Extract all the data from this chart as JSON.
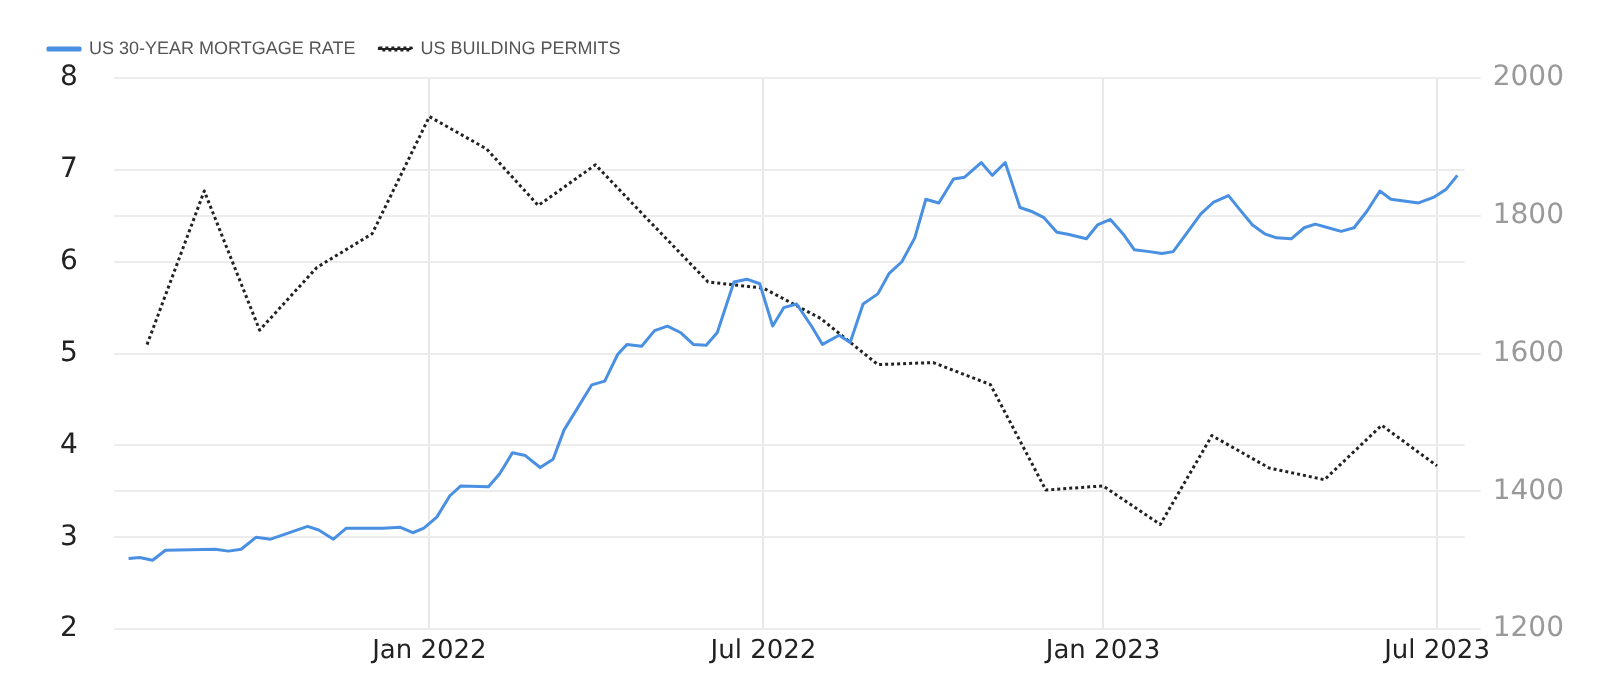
{
  "chart_data": {
    "type": "line",
    "legend": "top left",
    "grid": true,
    "marker": "none",
    "xlim": [
      "2021-07-14",
      "2023-07-16"
    ],
    "xticks": [
      {
        "value": "2022-01-01",
        "label": "Jan 2022"
      },
      {
        "value": "2022-07-01",
        "label": "Jul 2022"
      },
      {
        "value": "2023-01-01",
        "label": "Jan 2023"
      },
      {
        "value": "2023-07-01",
        "label": "Jul 2023"
      }
    ],
    "ylim": [
      2,
      8
    ],
    "yticks": [
      2,
      3,
      4,
      5,
      6,
      7,
      8
    ],
    "y2lim": [
      1200,
      2000
    ],
    "y2ticks": [
      1200,
      1400,
      1600,
      1800,
      2000
    ],
    "series": [
      {
        "name": "US 30-YEAR MORTGAGE RATE",
        "color": "#4a90e2",
        "line_style": "solid",
        "axis": "y",
        "x": [
          "2021-07-22",
          "2021-07-28",
          "2021-08-04",
          "2021-08-11",
          "2021-09-07",
          "2021-09-14",
          "2021-09-21",
          "2021-09-29",
          "2021-10-07",
          "2021-10-27",
          "2021-11-02",
          "2021-11-10",
          "2021-11-17",
          "2021-12-07",
          "2021-12-16",
          "2021-12-23",
          "2021-12-29",
          "2022-01-05",
          "2022-01-12",
          "2022-01-18",
          "2022-02-02",
          "2022-02-08",
          "2022-02-15",
          "2022-02-22",
          "2022-03-02",
          "2022-03-09",
          "2022-03-15",
          "2022-03-30",
          "2022-04-06",
          "2022-04-13",
          "2022-04-18",
          "2022-04-26",
          "2022-05-03",
          "2022-05-10",
          "2022-05-17",
          "2022-05-24",
          "2022-05-31",
          "2022-06-06",
          "2022-06-15",
          "2022-06-22",
          "2022-06-29",
          "2022-07-06",
          "2022-07-12",
          "2022-07-19",
          "2022-07-27",
          "2022-08-02",
          "2022-08-11",
          "2022-08-17",
          "2022-08-24",
          "2022-09-01",
          "2022-09-07",
          "2022-09-14",
          "2022-09-21",
          "2022-09-27",
          "2022-10-04",
          "2022-10-12",
          "2022-10-18",
          "2022-10-27",
          "2022-11-02",
          "2022-11-09",
          "2022-11-17",
          "2022-11-23",
          "2022-11-30",
          "2022-12-07",
          "2022-12-13",
          "2022-12-23",
          "2022-12-29",
          "2023-01-05",
          "2023-01-12",
          "2023-01-18",
          "2023-01-26",
          "2023-02-02",
          "2023-02-08",
          "2023-02-15",
          "2023-02-23",
          "2023-03-02",
          "2023-03-10",
          "2023-03-16",
          "2023-03-23",
          "2023-03-30",
          "2023-04-05",
          "2023-04-13",
          "2023-04-20",
          "2023-04-26",
          "2023-05-03",
          "2023-05-10",
          "2023-05-17",
          "2023-05-24",
          "2023-05-31",
          "2023-06-06",
          "2023-06-13",
          "2023-06-21",
          "2023-06-29",
          "2023-07-06",
          "2023-07-12"
        ],
        "values": [
          2.77,
          2.78,
          2.75,
          2.86,
          2.87,
          2.85,
          2.87,
          3.0,
          2.98,
          3.12,
          3.08,
          2.98,
          3.1,
          3.1,
          3.11,
          3.05,
          3.1,
          3.22,
          3.45,
          3.56,
          3.55,
          3.69,
          3.92,
          3.89,
          3.76,
          3.85,
          4.17,
          4.66,
          4.7,
          4.99,
          5.1,
          5.08,
          5.25,
          5.3,
          5.23,
          5.1,
          5.09,
          5.23,
          5.78,
          5.81,
          5.76,
          5.3,
          5.5,
          5.54,
          5.3,
          5.1,
          5.2,
          5.12,
          5.54,
          5.65,
          5.87,
          6.0,
          6.26,
          6.68,
          6.64,
          6.9,
          6.92,
          7.08,
          6.94,
          7.08,
          6.59,
          6.55,
          6.48,
          6.32,
          6.3,
          6.25,
          6.4,
          6.46,
          6.3,
          6.13,
          6.11,
          6.09,
          6.11,
          6.3,
          6.52,
          6.65,
          6.72,
          6.57,
          6.4,
          6.3,
          6.26,
          6.25,
          6.37,
          6.41,
          6.37,
          6.33,
          6.37,
          6.55,
          6.77,
          6.68,
          6.66,
          6.64,
          6.7,
          6.79,
          6.94
        ]
      },
      {
        "name": "US BUILDING PERMITS",
        "color": "#222222",
        "line_style": "dotted",
        "axis": "y2",
        "x": [
          "2021-08-01",
          "2021-09-01",
          "2021-10-01",
          "2021-11-01",
          "2021-12-01",
          "2022-01-01",
          "2022-02-01",
          "2022-03-01",
          "2022-04-01",
          "2022-05-01",
          "2022-06-01",
          "2022-07-01",
          "2022-08-01",
          "2022-09-01",
          "2022-10-01",
          "2022-11-01",
          "2022-12-01",
          "2023-01-01",
          "2023-02-01",
          "2023-03-01",
          "2023-04-01",
          "2023-05-01",
          "2023-06-01",
          "2023-07-01"
        ],
        "values": [
          1613,
          1836,
          1634,
          1725,
          1774,
          1944,
          1897,
          1815,
          1874,
          1790,
          1704,
          1695,
          1651,
          1584,
          1587,
          1555,
          1402,
          1408,
          1352,
          1481,
          1434,
          1417,
          1496,
          1437
        ]
      }
    ]
  }
}
